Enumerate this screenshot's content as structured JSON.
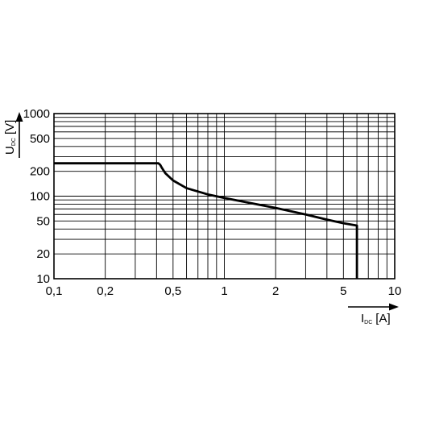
{
  "chart_data": {
    "type": "line",
    "xscale": "log",
    "yscale": "log",
    "xlim": [
      0.1,
      10
    ],
    "ylim": [
      10,
      1000
    ],
    "grid": true,
    "xlabel": {
      "main": "I",
      "sub": "DC",
      "unit": "[A]"
    },
    "ylabel": {
      "main": "U",
      "sub": "DC",
      "unit": "[V]"
    },
    "x_ticks": [
      {
        "value": 0.1,
        "label": "0,1"
      },
      {
        "value": 0.2,
        "label": "0,2"
      },
      {
        "value": 0.5,
        "label": "0,5"
      },
      {
        "value": 1,
        "label": "1"
      },
      {
        "value": 2,
        "label": "2"
      },
      {
        "value": 5,
        "label": "5"
      },
      {
        "value": 10,
        "label": "10"
      }
    ],
    "y_ticks": [
      {
        "value": 10,
        "label": "10"
      },
      {
        "value": 20,
        "label": "20"
      },
      {
        "value": 50,
        "label": "50"
      },
      {
        "value": 100,
        "label": "100"
      },
      {
        "value": 200,
        "label": "200"
      },
      {
        "value": 500,
        "label": "500"
      },
      {
        "value": 1000,
        "label": "1000"
      }
    ],
    "series": [
      {
        "x": [
          0.1,
          0.41,
          0.42,
          0.43,
          0.45,
          0.5,
          0.6,
          0.8,
          1.0,
          2.0,
          3.0,
          4.0,
          5.0,
          6.0,
          6.0
        ],
        "y": [
          250,
          250,
          240,
          220,
          190,
          155,
          125,
          105,
          95,
          72,
          60,
          52,
          47,
          44,
          10
        ]
      }
    ]
  }
}
